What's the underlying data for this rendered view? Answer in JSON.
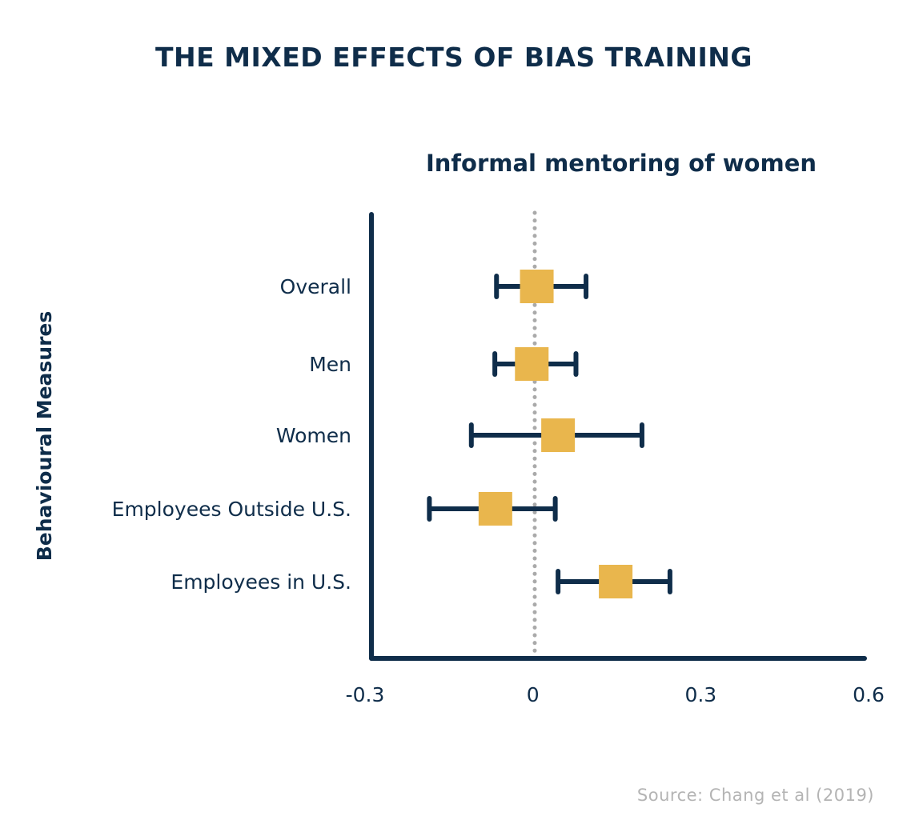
{
  "header": {
    "title": "THE MIXED EFFECTS OF BIAS TRAINING"
  },
  "chart_data": {
    "type": "forest",
    "title": "Informal mentoring of women",
    "ylabel": "Behavioural Measures",
    "xlabel": "",
    "xlim": [
      -0.3,
      0.6
    ],
    "xticks": [
      -0.3,
      0,
      0.3,
      0.6
    ],
    "xtick_labels": [
      "-0.3",
      "0",
      "0.3",
      "0.6"
    ],
    "reference_line": 0,
    "categories": [
      "Overall",
      "Men",
      "Women",
      "Employees Outside U.S.",
      "Employees in U.S."
    ],
    "estimates": [
      0.007,
      -0.002,
      0.045,
      -0.067,
      0.148
    ],
    "lower": [
      -0.065,
      -0.068,
      -0.11,
      -0.185,
      0.045
    ],
    "upper": [
      0.095,
      0.077,
      0.195,
      0.04,
      0.245
    ],
    "colors": {
      "axis": "#0f2d4a",
      "error_bar": "#0f2d4a",
      "marker": "#e9b64d",
      "reference_line": "#aaaaaa"
    }
  },
  "footer": {
    "source": "Source: Chang et al (2019)"
  }
}
